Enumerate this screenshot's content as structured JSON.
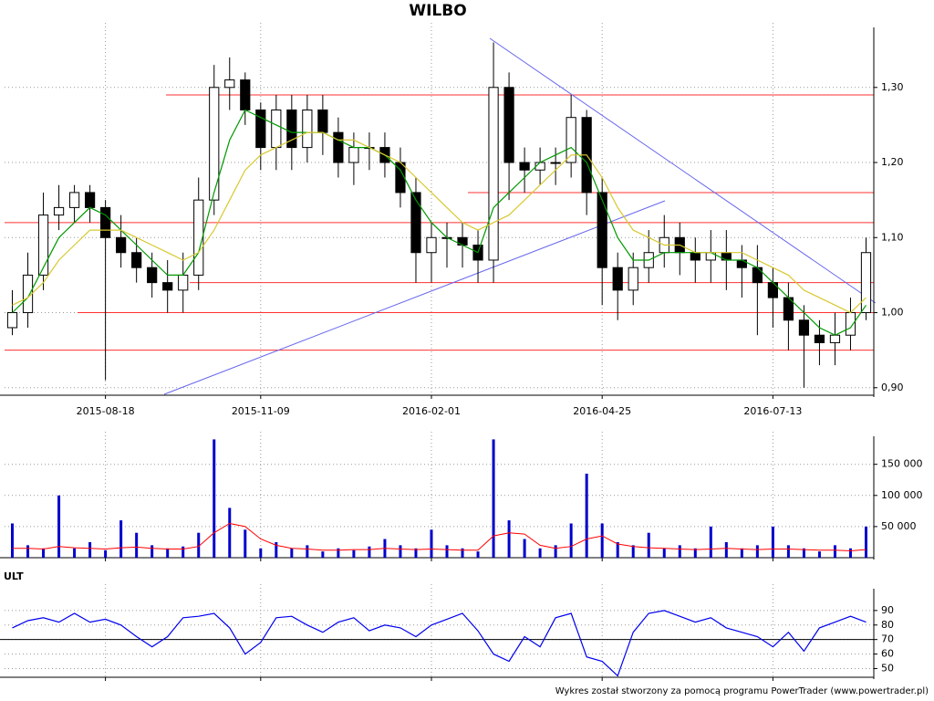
{
  "chart_data": [
    {
      "type": "candlestick",
      "title": "WILBO",
      "categories": [
        null,
        null,
        null,
        null,
        null,
        null,
        "2015-08-18",
        null,
        null,
        null,
        null,
        null,
        null,
        null,
        null,
        null,
        "2015-11-09",
        null,
        null,
        null,
        null,
        null,
        null,
        null,
        null,
        null,
        null,
        "2016-02-01",
        null,
        null,
        null,
        null,
        null,
        null,
        null,
        null,
        null,
        null,
        "2016-04-25",
        null,
        null,
        null,
        null,
        null,
        null,
        null,
        null,
        null,
        null,
        "2016-07-13",
        null,
        null,
        null,
        null,
        null,
        null
      ],
      "open": [
        0.98,
        1.0,
        1.05,
        1.13,
        1.14,
        1.16,
        1.14,
        1.1,
        1.08,
        1.06,
        1.04,
        1.03,
        1.05,
        1.15,
        1.3,
        1.31,
        1.27,
        1.22,
        1.27,
        1.22,
        1.27,
        1.24,
        1.2,
        1.22,
        1.22,
        1.2,
        1.16,
        1.08,
        1.1,
        1.1,
        1.09,
        1.07,
        1.3,
        1.2,
        1.19,
        1.2,
        1.2,
        1.26,
        1.16,
        1.06,
        1.03,
        1.06,
        1.08,
        1.1,
        1.08,
        1.07,
        1.08,
        1.07,
        1.06,
        1.04,
        1.02,
        0.99,
        0.97,
        0.96,
        0.97,
        1.0
      ],
      "high": [
        1.03,
        1.08,
        1.16,
        1.17,
        1.17,
        1.17,
        1.15,
        1.13,
        1.1,
        1.08,
        1.07,
        1.08,
        1.18,
        1.33,
        1.34,
        1.32,
        1.28,
        1.29,
        1.29,
        1.29,
        1.29,
        1.26,
        1.24,
        1.24,
        1.24,
        1.22,
        1.18,
        1.12,
        1.12,
        1.12,
        1.11,
        1.36,
        1.32,
        1.22,
        1.22,
        1.22,
        1.29,
        1.27,
        1.18,
        1.08,
        1.08,
        1.11,
        1.13,
        1.12,
        1.1,
        1.11,
        1.11,
        1.09,
        1.09,
        1.06,
        1.04,
        1.01,
        0.99,
        1.0,
        1.02,
        1.1
      ],
      "low": [
        0.97,
        0.98,
        1.03,
        1.11,
        1.12,
        1.12,
        0.91,
        1.06,
        1.04,
        1.02,
        1.0,
        1.0,
        1.03,
        1.13,
        1.27,
        1.25,
        1.19,
        1.19,
        1.19,
        1.2,
        1.21,
        1.18,
        1.17,
        1.19,
        1.18,
        1.14,
        1.04,
        1.04,
        1.06,
        1.06,
        1.04,
        1.04,
        1.15,
        1.16,
        1.17,
        1.17,
        1.18,
        1.13,
        1.01,
        0.99,
        1.01,
        1.04,
        1.06,
        1.05,
        1.04,
        1.04,
        1.03,
        1.02,
        0.97,
        0.98,
        0.95,
        0.9,
        0.93,
        0.93,
        0.95,
        0.99
      ],
      "close": [
        1.0,
        1.05,
        1.13,
        1.14,
        1.16,
        1.14,
        1.1,
        1.08,
        1.06,
        1.04,
        1.03,
        1.05,
        1.15,
        1.3,
        1.31,
        1.27,
        1.22,
        1.27,
        1.22,
        1.27,
        1.24,
        1.2,
        1.22,
        1.22,
        1.2,
        1.16,
        1.08,
        1.1,
        1.1,
        1.09,
        1.07,
        1.3,
        1.2,
        1.19,
        1.2,
        1.2,
        1.26,
        1.16,
        1.06,
        1.03,
        1.06,
        1.08,
        1.1,
        1.08,
        1.07,
        1.08,
        1.07,
        1.06,
        1.04,
        1.02,
        0.99,
        0.97,
        0.96,
        0.97,
        1.0,
        1.08
      ],
      "series": [
        {
          "color": "#009900",
          "values": [
            1.0,
            1.02,
            1.06,
            1.1,
            1.12,
            1.14,
            1.13,
            1.11,
            1.09,
            1.07,
            1.05,
            1.05,
            1.08,
            1.16,
            1.23,
            1.27,
            1.26,
            1.25,
            1.24,
            1.24,
            1.24,
            1.23,
            1.22,
            1.22,
            1.21,
            1.19,
            1.15,
            1.12,
            1.1,
            1.09,
            1.08,
            1.14,
            1.16,
            1.18,
            1.2,
            1.21,
            1.22,
            1.2,
            1.15,
            1.1,
            1.07,
            1.07,
            1.08,
            1.08,
            1.08,
            1.08,
            1.07,
            1.07,
            1.06,
            1.04,
            1.02,
            1.0,
            0.98,
            0.97,
            0.98,
            1.01
          ]
        },
        {
          "color": "#d8c830",
          "values": [
            1.01,
            1.02,
            1.04,
            1.07,
            1.09,
            1.11,
            1.11,
            1.11,
            1.1,
            1.09,
            1.08,
            1.07,
            1.08,
            1.11,
            1.15,
            1.19,
            1.21,
            1.22,
            1.23,
            1.24,
            1.24,
            1.23,
            1.23,
            1.22,
            1.21,
            1.2,
            1.18,
            1.16,
            1.14,
            1.12,
            1.11,
            1.12,
            1.13,
            1.15,
            1.17,
            1.19,
            1.21,
            1.21,
            1.18,
            1.14,
            1.11,
            1.1,
            1.09,
            1.09,
            1.08,
            1.08,
            1.08,
            1.08,
            1.07,
            1.06,
            1.05,
            1.03,
            1.02,
            1.01,
            1.0,
            1.02
          ]
        }
      ],
      "hlines": [
        1.29,
        1.16,
        1.12,
        1.04,
        1.0,
        0.95
      ],
      "hline_color": "#ff3030",
      "ylim": [
        0.89,
        1.38
      ],
      "yticks": [
        {
          "value": 0.9,
          "label": "0,90"
        },
        {
          "value": 1.0,
          "label": "1,00"
        },
        {
          "value": 1.1,
          "label": "1,10"
        },
        {
          "value": 1.2,
          "label": "1,20"
        },
        {
          "value": 1.3,
          "label": "1,30"
        }
      ],
      "grid": true
    },
    {
      "type": "bar",
      "color": "#0000cc",
      "values": [
        55000,
        20000,
        15000,
        100000,
        15000,
        25000,
        12000,
        60000,
        40000,
        20000,
        15000,
        18000,
        40000,
        190000,
        80000,
        45000,
        15000,
        25000,
        15000,
        20000,
        10000,
        15000,
        12000,
        18000,
        30000,
        20000,
        15000,
        45000,
        20000,
        15000,
        10000,
        190000,
        60000,
        30000,
        15000,
        20000,
        55000,
        135000,
        55000,
        25000,
        20000,
        40000,
        15000,
        20000,
        15000,
        50000,
        25000,
        15000,
        20000,
        50000,
        20000,
        15000,
        10000,
        20000,
        15000,
        50000
      ],
      "series": [
        {
          "color": "#ff0000",
          "values": [
            15000,
            15000,
            14000,
            18000,
            16000,
            15000,
            14000,
            16000,
            17000,
            15000,
            14000,
            14000,
            18000,
            40000,
            55000,
            50000,
            30000,
            20000,
            15000,
            14000,
            12000,
            12000,
            13000,
            13000,
            15000,
            14000,
            13000,
            14000,
            13000,
            12000,
            12000,
            35000,
            40000,
            38000,
            20000,
            15000,
            18000,
            30000,
            35000,
            22000,
            18000,
            16000,
            15000,
            14000,
            13000,
            14000,
            15000,
            14000,
            13000,
            14000,
            14000,
            13000,
            12000,
            12000,
            11000,
            13000
          ]
        }
      ],
      "ylim": [
        0,
        195000
      ],
      "yticks": [
        {
          "value": 50000,
          "label": "50 000"
        },
        {
          "value": 100000,
          "label": "100 000"
        },
        {
          "value": 150000,
          "label": "150 000"
        }
      ],
      "grid": true
    },
    {
      "type": "line",
      "title": "ULT",
      "color": "#0000ee",
      "values": [
        78,
        83,
        85,
        82,
        88,
        82,
        84,
        80,
        72,
        65,
        72,
        85,
        86,
        88,
        78,
        60,
        68,
        85,
        86,
        80,
        75,
        82,
        85,
        76,
        80,
        78,
        72,
        80,
        84,
        88,
        76,
        60,
        55,
        72,
        65,
        85,
        88,
        58,
        55,
        45,
        75,
        88,
        90,
        86,
        82,
        85,
        78,
        75,
        72,
        65,
        75,
        62,
        78,
        82,
        86,
        82
      ],
      "reference": 70,
      "ylim": [
        44,
        105
      ],
      "yticks": [
        50,
        60,
        70,
        80,
        90
      ],
      "grid": true
    }
  ],
  "footer": "Wykres został stworzony za pomocą programu PowerTrader (www.powertrader.pl)"
}
